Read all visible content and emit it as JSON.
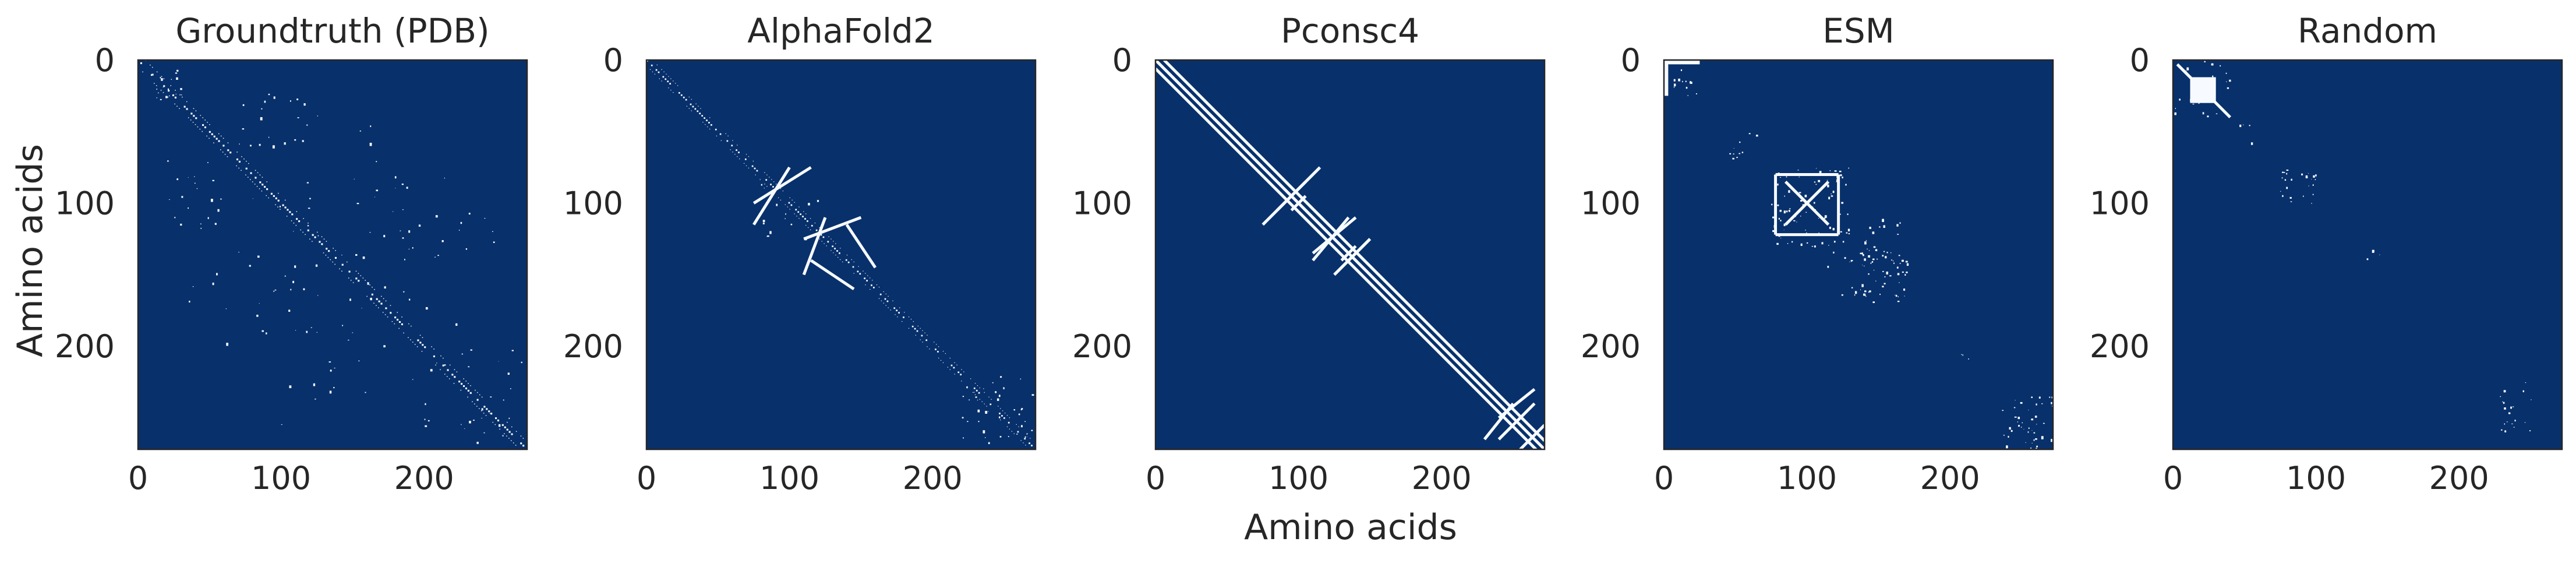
{
  "figure": {
    "xlabel": "Amino acids",
    "ylabel": "Amino acids"
  },
  "chart_data": {
    "type": "heatmap",
    "description_units": "residue index",
    "colors": {
      "background": "#08306b",
      "contact": "#f7fbff",
      "frame": "#262626"
    },
    "panels": [
      {
        "title": "Groundtruth (PDB)",
        "xlim": [
          0,
          272
        ],
        "ylim": [
          272,
          0
        ],
        "xticks": [
          0,
          100,
          200
        ],
        "yticks": [
          0,
          100,
          200
        ],
        "diag_dots": [
          [
            0,
            270,
            0,
            2.5
          ],
          [
            0,
            270,
            5,
            1.2
          ],
          [
            0,
            270,
            -5,
            1.2
          ]
        ],
        "blocks": [],
        "lines": [],
        "scatter": [
          [
            5,
            30,
            5,
            30,
            18
          ],
          [
            70,
            120,
            20,
            60,
            20
          ],
          [
            20,
            60,
            70,
            120,
            20
          ],
          [
            80,
            220,
            95,
            235,
            30
          ],
          [
            95,
            235,
            80,
            220,
            30
          ],
          [
            180,
            260,
            100,
            140,
            10
          ],
          [
            100,
            140,
            180,
            260,
            10
          ],
          [
            30,
            140,
            120,
            200,
            12
          ],
          [
            120,
            200,
            30,
            140,
            12
          ],
          [
            200,
            260,
            230,
            270,
            12
          ],
          [
            230,
            270,
            200,
            260,
            12
          ]
        ]
      },
      {
        "title": "AlphaFold2",
        "xlim": [
          0,
          272
        ],
        "ylim": [
          272,
          0
        ],
        "xticks": [
          0,
          100,
          200
        ],
        "yticks": [
          0,
          100,
          200
        ],
        "diag_dots": [
          [
            0,
            270,
            0,
            2.2
          ],
          [
            0,
            270,
            4,
            1.0
          ],
          [
            0,
            270,
            -4,
            1.0
          ]
        ],
        "blocks": [],
        "lines": [
          [
            75,
            100,
            115,
            75
          ],
          [
            100,
            75,
            75,
            115
          ],
          [
            110,
            125,
            150,
            110
          ],
          [
            125,
            110,
            110,
            150
          ],
          [
            115,
            140,
            145,
            160
          ],
          [
            140,
            115,
            160,
            145
          ]
        ],
        "scatter": [
          [
            220,
            270,
            220,
            270,
            40
          ],
          [
            80,
            130,
            80,
            130,
            15
          ]
        ]
      },
      {
        "title": "Pconsc4",
        "xlim": [
          0,
          272
        ],
        "ylim": [
          272,
          0
        ],
        "xticks": [
          0,
          100,
          200
        ],
        "yticks": [
          0,
          100,
          200
        ],
        "diag_dots": [],
        "blocks": [],
        "lines": [
          [
            0,
            0,
            272,
            272
          ],
          [
            6,
            0,
            272,
            266
          ],
          [
            0,
            6,
            266,
            272
          ],
          [
            75,
            115,
            105,
            85
          ],
          [
            85,
            105,
            115,
            75
          ],
          [
            110,
            135,
            140,
            110
          ],
          [
            135,
            110,
            110,
            140
          ],
          [
            125,
            150,
            150,
            125
          ],
          [
            150,
            125,
            125,
            150
          ],
          [
            95,
            105,
            105,
            95
          ],
          [
            130,
            140,
            140,
            130
          ],
          [
            240,
            250,
            265,
            230
          ],
          [
            250,
            240,
            230,
            265
          ],
          [
            240,
            265,
            265,
            240
          ],
          [
            255,
            272,
            272,
            255
          ]
        ],
        "scatter": []
      },
      {
        "title": "ESM",
        "xlim": [
          0,
          272
        ],
        "ylim": [
          272,
          0
        ],
        "xticks": [
          0,
          100,
          200
        ],
        "yticks": [
          0,
          100,
          200
        ],
        "diag_dots": [],
        "blocks": [
          [
            0,
            0,
            25,
            3
          ],
          [
            0,
            0,
            3,
            25
          ]
        ],
        "lines": [
          [
            78,
            80,
            78,
            122
          ],
          [
            78,
            122,
            122,
            122
          ],
          [
            122,
            122,
            122,
            80
          ],
          [
            122,
            80,
            78,
            80
          ],
          [
            85,
            85,
            115,
            115
          ],
          [
            115,
            85,
            85,
            115
          ]
        ],
        "scatter": [
          [
            75,
            130,
            75,
            130,
            90
          ],
          [
            110,
            170,
            130,
            165,
            40
          ],
          [
            130,
            165,
            110,
            170,
            40
          ],
          [
            45,
            65,
            50,
            70,
            10
          ],
          [
            235,
            272,
            235,
            272,
            45
          ],
          [
            5,
            25,
            5,
            25,
            12
          ],
          [
            200,
            215,
            205,
            215,
            3
          ]
        ]
      },
      {
        "title": "Random",
        "xlim": [
          0,
          272
        ],
        "ylim": [
          272,
          0
        ],
        "xticks": [
          0,
          100,
          200
        ],
        "yticks": [
          0,
          100,
          200
        ],
        "diag_dots": [],
        "blocks": [
          [
            12,
            12,
            30,
            30
          ]
        ],
        "lines": [
          [
            3,
            3,
            40,
            40
          ]
        ],
        "scatter": [
          [
            0,
            40,
            0,
            40,
            25
          ],
          [
            75,
            100,
            75,
            100,
            25
          ],
          [
            225,
            260,
            225,
            260,
            20
          ],
          [
            40,
            60,
            40,
            60,
            4
          ],
          [
            130,
            145,
            130,
            145,
            4
          ]
        ]
      }
    ]
  }
}
